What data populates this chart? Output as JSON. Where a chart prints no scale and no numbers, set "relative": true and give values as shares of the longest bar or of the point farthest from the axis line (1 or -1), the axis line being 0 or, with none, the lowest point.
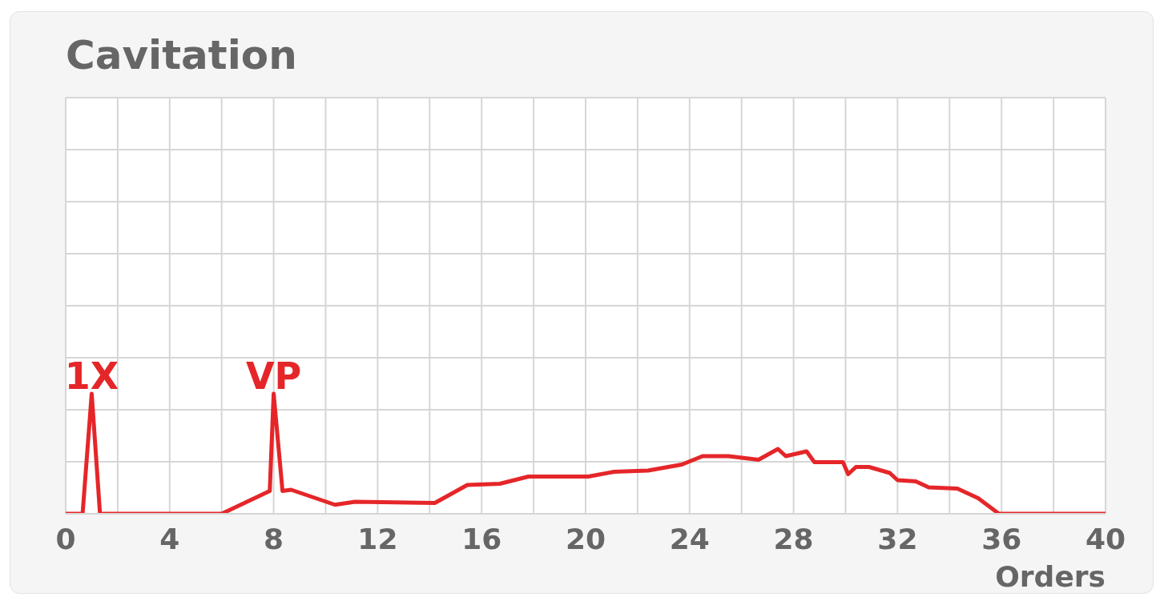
{
  "chart_data": {
    "type": "line",
    "title": "Cavitation",
    "xlabel": "Orders",
    "relative": true,
    "x": [
      0,
      0.65,
      1,
      1.32,
      6,
      7.85,
      8,
      8.34,
      8.67,
      10.36,
      11.13,
      14.2,
      15.45,
      16.7,
      17.8,
      20.1,
      21.1,
      22.4,
      23.7,
      24.5,
      25.5,
      26.65,
      27.4,
      27.7,
      28.5,
      28.8,
      29.9,
      30.1,
      30.4,
      30.9,
      31.7,
      32,
      32.7,
      33.2,
      34.3,
      35.1,
      35.9,
      40
    ],
    "series": [
      {
        "color": "#e52629",
        "values": [
          0,
          0,
          1,
          0,
          0,
          0.19,
          1,
          0.19,
          0.2,
          0.075,
          0.1,
          0.09,
          0.24,
          0.25,
          0.31,
          0.31,
          0.35,
          0.36,
          0.41,
          0.48,
          0.48,
          0.45,
          0.54,
          0.48,
          0.52,
          0.43,
          0.43,
          0.33,
          0.39,
          0.39,
          0.34,
          0.28,
          0.27,
          0.22,
          0.21,
          0.13,
          0,
          0
        ]
      }
    ],
    "xlim": [
      0,
      40
    ],
    "xticks": [
      0,
      {
        "value": 2,
        "label": null
      },
      4,
      {
        "value": 6,
        "label": null
      },
      8,
      {
        "value": 10,
        "label": null
      },
      12,
      {
        "value": 14,
        "label": null
      },
      16,
      {
        "value": 18,
        "label": null
      },
      20,
      {
        "value": 22,
        "label": null
      },
      24,
      {
        "value": 26,
        "label": null
      },
      28,
      {
        "value": 30,
        "label": null
      },
      32,
      {
        "value": 34,
        "label": null
      },
      36,
      {
        "value": 38,
        "label": null
      },
      40
    ],
    "grid": true,
    "marker": "none",
    "annotations": [
      {
        "text": "1X",
        "x": 1,
        "y": 1
      },
      {
        "text": "VP",
        "x": 8,
        "y": 1
      }
    ]
  }
}
